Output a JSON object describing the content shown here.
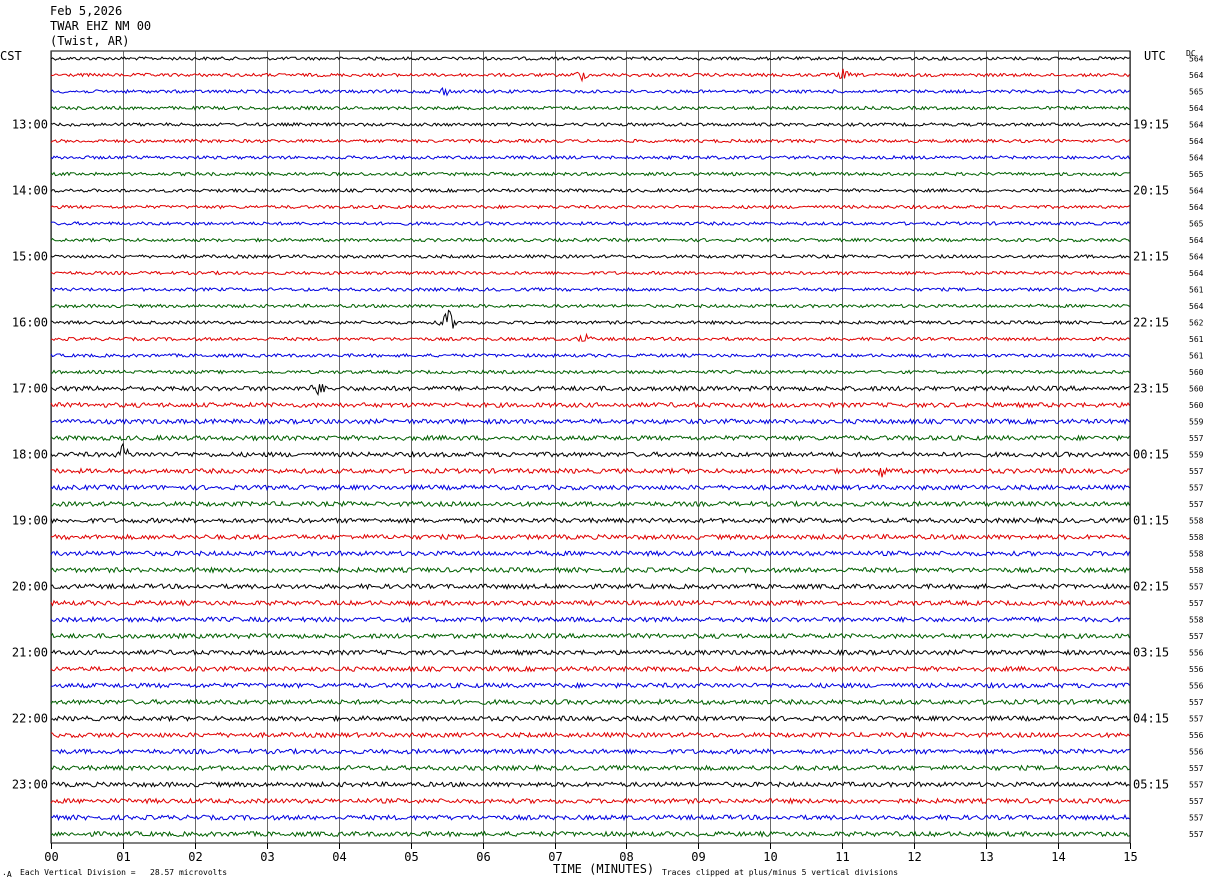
{
  "header": {
    "date": "Feb 5,2026",
    "station": "TWAR EHZ NM 00",
    "location": "(Twist, AR)"
  },
  "axes": {
    "left_tz": "CST",
    "right_tz": "UTC",
    "dc_label": "DC",
    "xlabel": "TIME (MINUTES)"
  },
  "footer": {
    "scale_note": "Each Vertical Division =   28.57 microvolts",
    "clip_note": "Traces clipped at plus/minus 5 vertical divisions",
    "corner_mark": "·A"
  },
  "colors": {
    "trace_cycle": [
      "#000000",
      "#e00000",
      "#0000e0",
      "#006000"
    ],
    "grid": "#000000"
  },
  "chart_data": {
    "type": "line",
    "title": "",
    "xlim": [
      0,
      15
    ],
    "x_ticks": [
      "00",
      "01",
      "02",
      "03",
      "04",
      "05",
      "06",
      "07",
      "08",
      "09",
      "10",
      "11",
      "12",
      "13",
      "14",
      "15"
    ],
    "rows": 48,
    "left_hour_labels": [
      {
        "row": 4,
        "label": "13:00"
      },
      {
        "row": 8,
        "label": "14:00"
      },
      {
        "row": 12,
        "label": "15:00"
      },
      {
        "row": 16,
        "label": "16:00"
      },
      {
        "row": 20,
        "label": "17:00"
      },
      {
        "row": 24,
        "label": "18:00"
      },
      {
        "row": 28,
        "label": "19:00"
      },
      {
        "row": 32,
        "label": "20:00"
      },
      {
        "row": 36,
        "label": "21:00"
      },
      {
        "row": 40,
        "label": "22:00"
      },
      {
        "row": 44,
        "label": "23:00"
      }
    ],
    "right_hour_labels": [
      {
        "row": 4,
        "label": "19:15"
      },
      {
        "row": 8,
        "label": "20:15"
      },
      {
        "row": 12,
        "label": "21:15"
      },
      {
        "row": 16,
        "label": "22:15"
      },
      {
        "row": 20,
        "label": "23:15"
      },
      {
        "row": 24,
        "label": "00:15"
      },
      {
        "row": 28,
        "label": "01:15"
      },
      {
        "row": 32,
        "label": "02:15"
      },
      {
        "row": 36,
        "label": "03:15"
      },
      {
        "row": 40,
        "label": "04:15"
      },
      {
        "row": 44,
        "label": "05:15"
      }
    ],
    "dc_offsets": [
      "564",
      "564",
      "565",
      "564",
      "564",
      "564",
      "564",
      "565",
      "564",
      "564",
      "565",
      "564",
      "564",
      "564",
      "561",
      "564",
      "562",
      "561",
      "561",
      "560",
      "560",
      "560",
      "559",
      "557",
      "559",
      "557",
      "557",
      "557",
      "558",
      "558",
      "558",
      "558",
      "557",
      "557",
      "558",
      "557",
      "556",
      "556",
      "556",
      "557",
      "557",
      "556",
      "556",
      "557",
      "557",
      "557",
      "557",
      "557"
    ],
    "events": [
      {
        "row": 16,
        "minute": 5.5,
        "amplitude": 2.2
      },
      {
        "row": 24,
        "minute": 1.0,
        "amplitude": 1.1
      },
      {
        "row": 20,
        "minute": 3.7,
        "amplitude": 0.8
      },
      {
        "row": 1,
        "minute": 7.35,
        "amplitude": 0.7
      },
      {
        "row": 1,
        "minute": 11.0,
        "amplitude": 0.6
      },
      {
        "row": 2,
        "minute": 5.45,
        "amplitude": 0.5
      },
      {
        "row": 17,
        "minute": 7.4,
        "amplitude": 0.6
      },
      {
        "row": 25,
        "minute": 11.55,
        "amplitude": 0.6
      }
    ]
  }
}
